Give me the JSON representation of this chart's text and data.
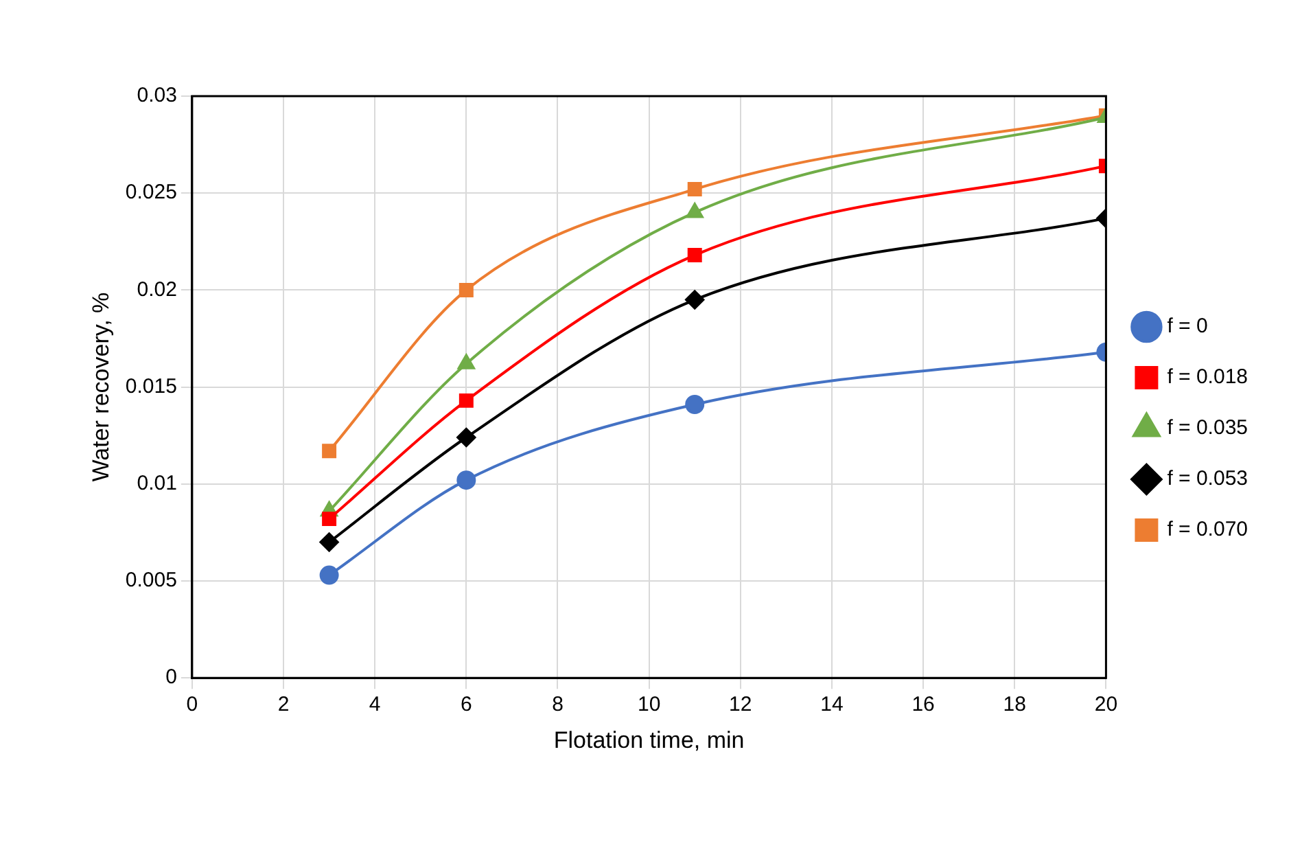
{
  "chart_data": {
    "type": "line",
    "xlabel": "Flotation time, min",
    "ylabel": "Water recovery, %",
    "x": [
      3,
      6,
      11,
      20
    ],
    "series": [
      {
        "name": "f = 0",
        "color": "#4472c4",
        "marker": "circle",
        "values": [
          0.0053,
          0.0102,
          0.0141,
          0.0168
        ]
      },
      {
        "name": "f = 0.018",
        "color": "#ff0000",
        "marker": "square",
        "values": [
          0.0082,
          0.0143,
          0.0218,
          0.0264
        ]
      },
      {
        "name": "f = 0.035",
        "color": "#70ad47",
        "marker": "triangle",
        "values": [
          0.0086,
          0.0162,
          0.024,
          0.0289
        ]
      },
      {
        "name": "f = 0.053",
        "color": "#000000",
        "marker": "diamond",
        "values": [
          0.007,
          0.0124,
          0.0195,
          0.0237
        ]
      },
      {
        "name": "f = 0.070",
        "color": "#ed7d31",
        "marker": "square",
        "values": [
          0.0117,
          0.02,
          0.0252,
          0.029
        ]
      }
    ],
    "xlim": [
      0,
      20
    ],
    "xticks": [
      0,
      2,
      4,
      6,
      8,
      10,
      12,
      14,
      16,
      18,
      20
    ],
    "ylim": [
      0,
      0.03
    ],
    "yticks": [
      0,
      0.005,
      0.01,
      0.015,
      0.02,
      0.025,
      0.03
    ],
    "grid": true,
    "legend": "right",
    "line_style": "solid"
  }
}
